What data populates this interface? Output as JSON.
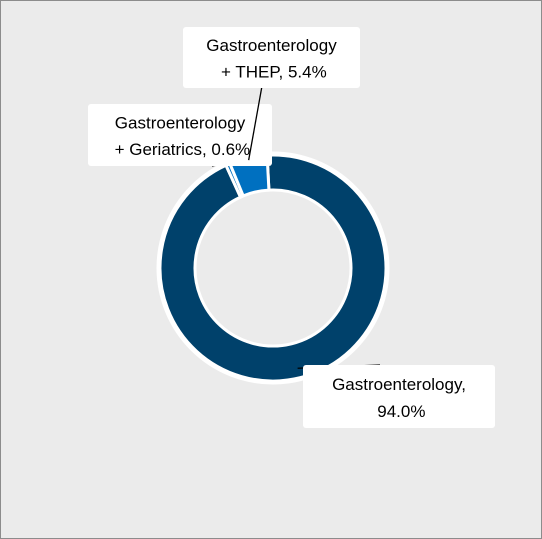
{
  "chart_data": {
    "type": "donut",
    "values": [
      94.0,
      0.6,
      5.4
    ],
    "value_labels": [
      "Gastroenterology, 94.0%",
      "Gastroenterology + Geriatrics, 0.6%",
      "Gastroenterology + THEP, 5.4%"
    ],
    "colors": [
      "#00416b",
      "#0070c0",
      "#0070c0"
    ]
  }
}
